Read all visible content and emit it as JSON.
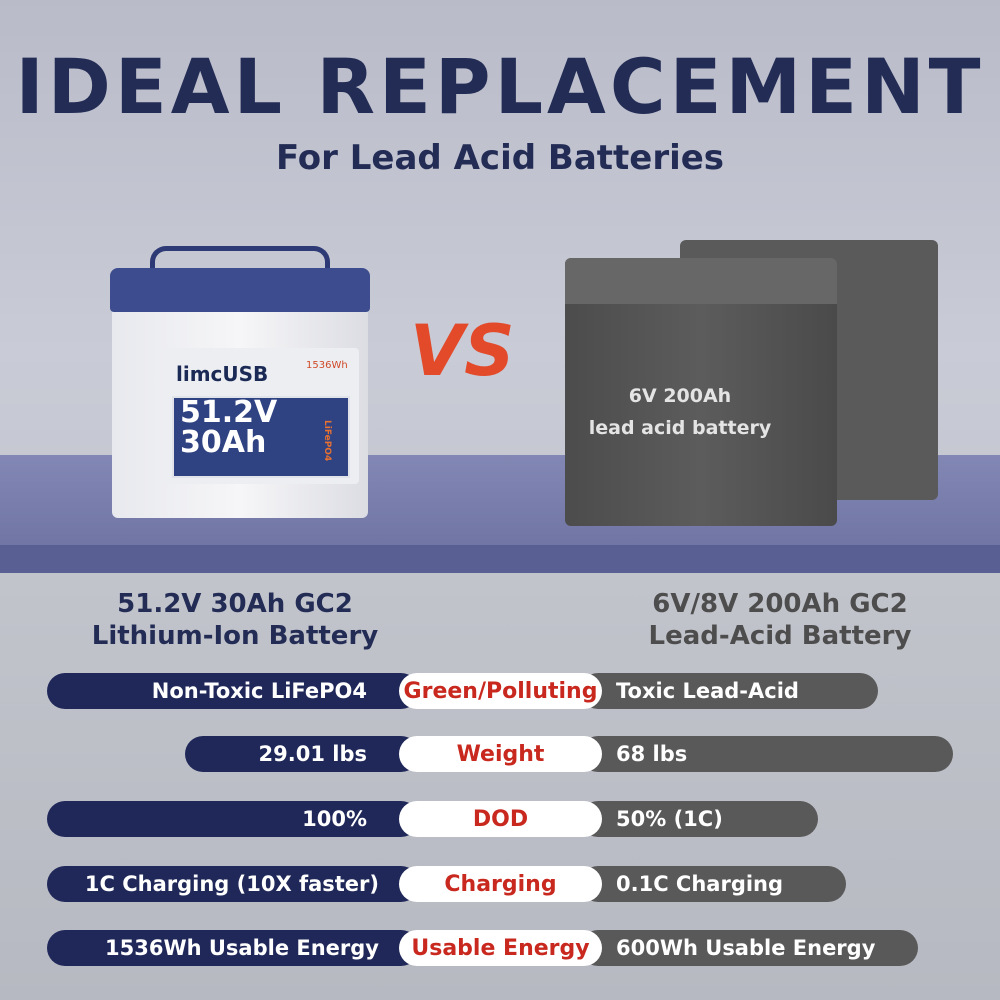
{
  "header": {
    "title": "IDEAL REPLACEMENT",
    "subtitle": "For Lead Acid Batteries"
  },
  "lithium_battery": {
    "brand": "limcUSB",
    "energy": "1536Wh",
    "voltage": "51.2V",
    "capacity": "30Ah",
    "chemistry": "LiFePO4"
  },
  "vs_label": "VS",
  "lead_battery": {
    "label_line1": "6V 200Ah",
    "label_line2": "lead acid battery"
  },
  "left_product": {
    "line1": "51.2V 30Ah GC2",
    "line2": "Lithium-Ion Battery"
  },
  "right_product": {
    "line1": "6V/8V 200Ah GC2",
    "line2": "Lead-Acid Battery"
  },
  "colors": {
    "navy": "#1f2859",
    "gray": "#595959",
    "red": "#c8281e"
  },
  "comparison": [
    {
      "left": "Non-Toxic LiFePO4",
      "label": "Green/Polluting",
      "right": "Toxic Lead-Acid"
    },
    {
      "left": "29.01 lbs",
      "label": "Weight",
      "right": "68 lbs"
    },
    {
      "left": "100%",
      "label": "DOD",
      "right": "50% (1C)"
    },
    {
      "left": "1C Charging (10X faster)",
      "label": "Charging",
      "right": "0.1C Charging"
    },
    {
      "left": "1536Wh Usable Energy",
      "label": "Usable Energy",
      "right": "600Wh Usable Energy"
    }
  ]
}
